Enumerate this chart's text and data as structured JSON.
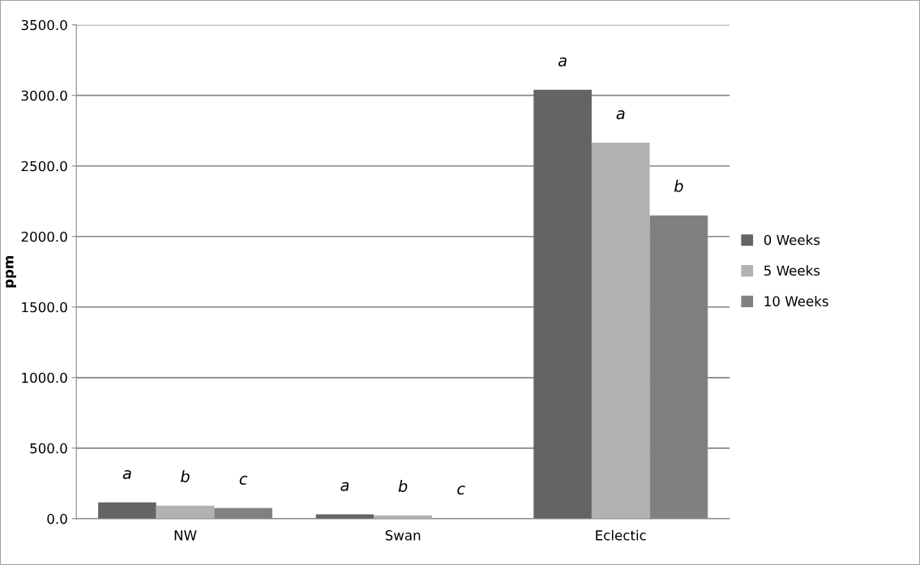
{
  "chart_data": {
    "type": "bar",
    "ylabel": "ppm",
    "categories": [
      "NW",
      "Swan",
      "Eclectic"
    ],
    "series": [
      {
        "name": "0 Weeks",
        "color": "#646464",
        "values": [
          115,
          30,
          3040
        ],
        "value_labels": [
          "a",
          "a",
          "a"
        ]
      },
      {
        "name": "5 Weeks",
        "color": "#b2b2b2",
        "values": [
          92,
          23,
          2665
        ],
        "value_labels": [
          "b",
          "b",
          "a"
        ]
      },
      {
        "name": "10 Weeks",
        "color": "#808080",
        "values": [
          75,
          5,
          2150
        ],
        "value_labels": [
          "c",
          "c",
          "b"
        ]
      }
    ],
    "ylim": [
      0,
      3500
    ],
    "yticks": [
      {
        "value": 0,
        "label": "0.0"
      },
      {
        "value": 500,
        "label": "500.0"
      },
      {
        "value": 1000,
        "label": "1000.0"
      },
      {
        "value": 1500,
        "label": "1500.0"
      },
      {
        "value": 2000,
        "label": "2000.0"
      },
      {
        "value": 2500,
        "label": "2500.0"
      },
      {
        "value": 3000,
        "label": "3000.0"
      },
      {
        "value": 3500,
        "label": "3500.0"
      }
    ],
    "grid": "y",
    "legend": "right"
  }
}
